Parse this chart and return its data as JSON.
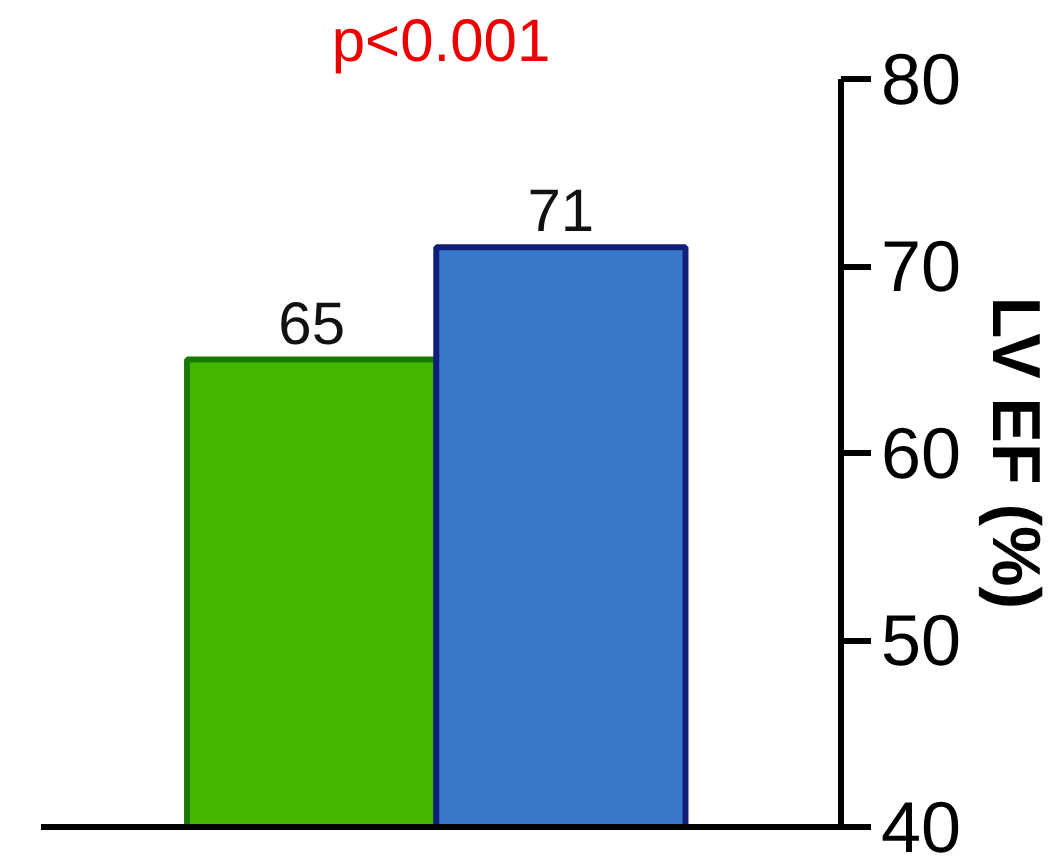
{
  "chart_data": {
    "type": "bar",
    "categories": [
      null,
      null
    ],
    "values": [
      65,
      71
    ],
    "colors": [
      "#44b800",
      "#3a78cc"
    ],
    "ylabel": "LV EF (%)",
    "ylim": [
      40,
      80
    ],
    "yticks": [
      40,
      50,
      60,
      70,
      80
    ],
    "annotations": [
      "p<0.001"
    ],
    "data_labels": true,
    "grid": false,
    "tick_labels": "y"
  }
}
